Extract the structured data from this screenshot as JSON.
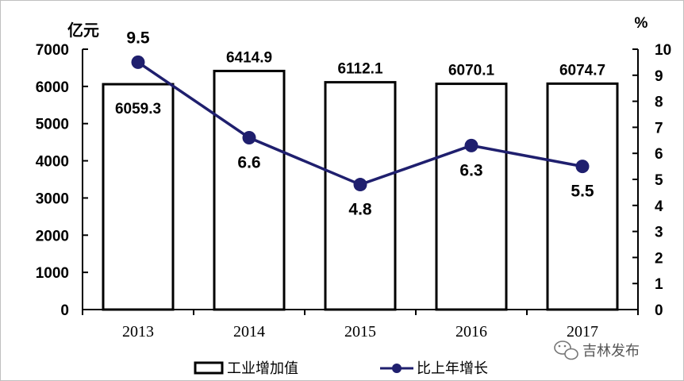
{
  "chart_data": {
    "type": "bar",
    "categories": [
      "2013",
      "2014",
      "2015",
      "2016",
      "2017"
    ],
    "series": [
      {
        "name": "工业增加值",
        "type": "bar",
        "axis": "left",
        "values": [
          6059.3,
          6414.9,
          6112.1,
          6070.1,
          6074.7
        ],
        "labels": [
          "6059.3",
          "6414.9",
          "6112.1",
          "6070.1",
          "6074.7"
        ]
      },
      {
        "name": "比上年增长",
        "type": "line",
        "axis": "right",
        "values": [
          9.5,
          6.6,
          4.8,
          6.3,
          5.5
        ],
        "labels": [
          "9.5",
          "6.6",
          "4.8",
          "6.3",
          "5.5"
        ]
      }
    ],
    "ylabel": "亿元",
    "ylabel_right": "%",
    "ylim": [
      0,
      7000
    ],
    "ylim_right": [
      0,
      10
    ],
    "yticks": [
      "0",
      "1000",
      "2000",
      "3000",
      "4000",
      "5000",
      "6000",
      "7000"
    ],
    "yticks_right": [
      "0",
      "1",
      "2",
      "3",
      "4",
      "5",
      "6",
      "7",
      "8",
      "9",
      "10"
    ],
    "grid": false,
    "legend": "bottom"
  },
  "watermark": {
    "text": "吉林发布",
    "icon": "wechat-icon"
  },
  "colors": {
    "line": "#1f1f6e",
    "bar_fill": "#ffffff",
    "bar_stroke": "#000000"
  }
}
